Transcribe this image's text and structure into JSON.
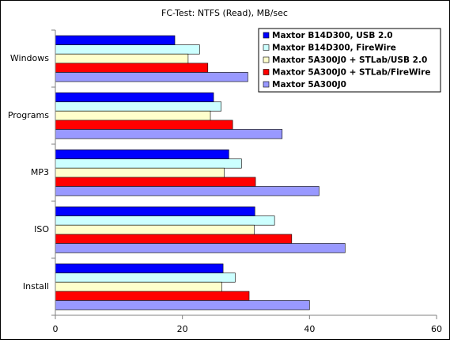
{
  "chart_data": {
    "type": "bar",
    "orientation": "horizontal",
    "title": "FC-Test: NTFS (Read), MB/sec",
    "categories": [
      "Windows",
      "Programs",
      "MP3",
      "ISO",
      "Install"
    ],
    "series": [
      {
        "name": "Maxtor B14D300, USB 2.0",
        "color": "#0000ff",
        "values": [
          18.8,
          24.9,
          27.3,
          31.4,
          26.4
        ]
      },
      {
        "name": "Maxtor B14D300, FireWire",
        "color": "#ccffff",
        "values": [
          22.7,
          26.1,
          29.3,
          34.5,
          28.3
        ]
      },
      {
        "name": "Maxtor 5A300J0 + STLab/USB 2.0",
        "color": "#ffffcc",
        "values": [
          20.9,
          24.4,
          26.6,
          31.3,
          26.2
        ]
      },
      {
        "name": "Maxtor 5A300J0 + STLab/FireWire",
        "color": "#ff0000",
        "values": [
          24.0,
          27.9,
          31.5,
          37.2,
          30.5
        ]
      },
      {
        "name": "Maxtor 5A300J0",
        "color": "#9999ff",
        "values": [
          30.3,
          35.7,
          41.5,
          45.6,
          40.0
        ]
      }
    ],
    "xlim": [
      0,
      60
    ],
    "xticks": [
      0,
      20,
      40,
      60
    ],
    "legend": "upper right"
  }
}
